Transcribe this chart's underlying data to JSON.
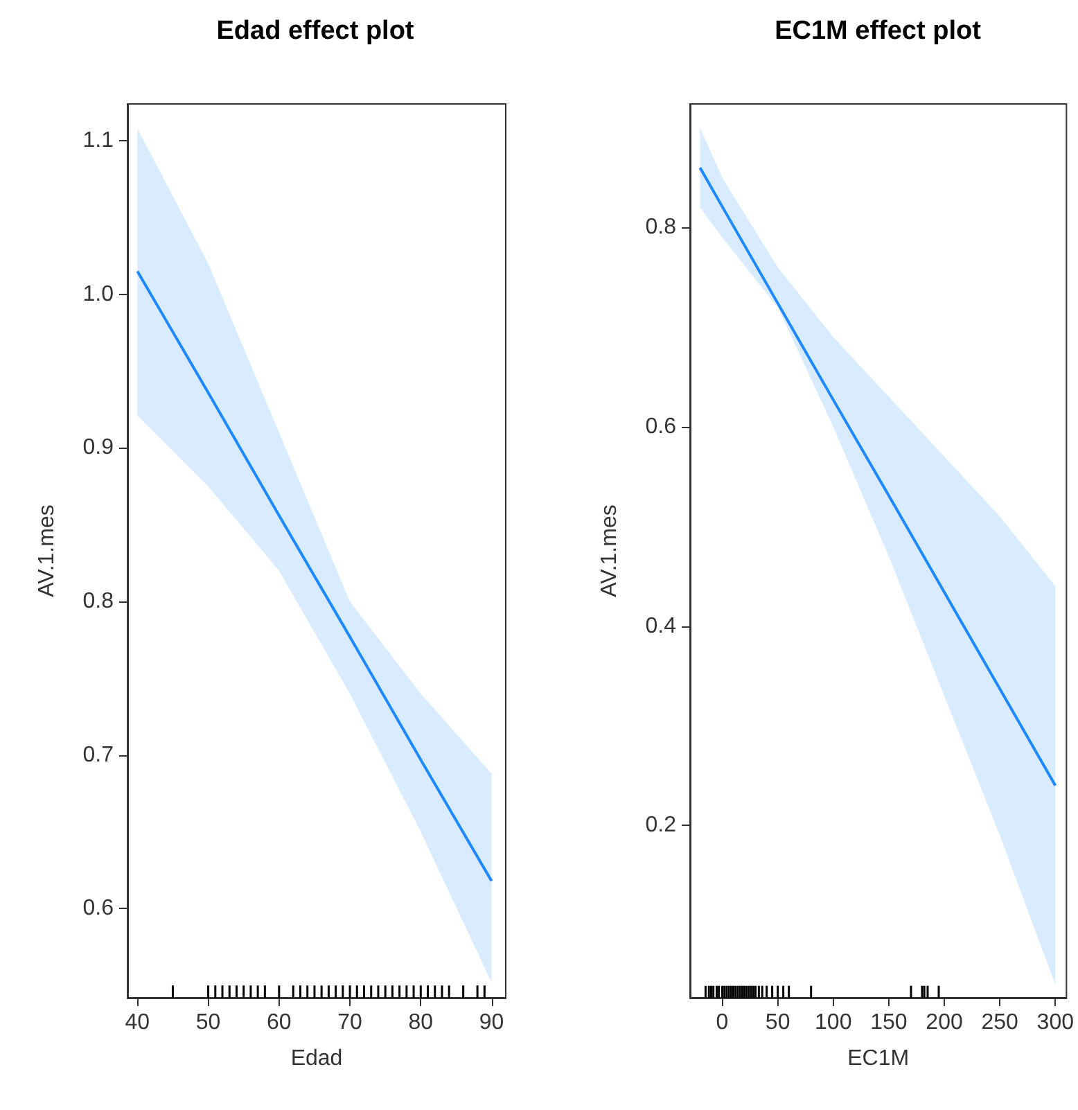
{
  "chart_data": [
    {
      "type": "line",
      "title": "Edad effect plot",
      "xlabel": "Edad",
      "ylabel": "AV.1.mes",
      "xlim": [
        38.6,
        92
      ],
      "xticks": [
        40,
        50,
        60,
        70,
        80,
        90
      ],
      "ylim": [
        0.542,
        1.124
      ],
      "yticks": [
        0.6,
        0.7,
        0.8,
        0.9,
        {
          "value": 1,
          "label": "1.0"
        },
        1.1
      ],
      "grid": false,
      "series": [
        {
          "color": "#1e88ff",
          "marker": "none",
          "x": [
            40,
            50,
            60,
            70,
            80,
            90
          ],
          "values": [
            1.015,
            0.936,
            0.856,
            0.777,
            0.697,
            0.618
          ],
          "lower": [
            0.921,
            0.875,
            0.82,
            0.74,
            0.65,
            0.552
          ],
          "upper": [
            1.108,
            1.02,
            0.91,
            0.8,
            0.74,
            0.688
          ]
        },
        {
          "type": "bar",
          "color": "#000000",
          "x": [
            45,
            50,
            51,
            52,
            53,
            54,
            55,
            56,
            57,
            58,
            60,
            62,
            63,
            64,
            65,
            66,
            67,
            68,
            69,
            70,
            71,
            72,
            73,
            74,
            75,
            76,
            77,
            78,
            79,
            80,
            81,
            82,
            83,
            84,
            86,
            88,
            89
          ],
          "base": [
            0.542,
            0.542,
            0.542,
            0.542,
            0.542,
            0.542,
            0.542,
            0.542,
            0.542,
            0.542,
            0.542,
            0.542,
            0.542,
            0.542,
            0.542,
            0.542,
            0.542,
            0.542,
            0.542,
            0.542,
            0.542,
            0.542,
            0.542,
            0.542,
            0.542,
            0.542,
            0.542,
            0.542,
            0.542,
            0.542,
            0.542,
            0.542,
            0.542,
            0.542,
            0.542,
            0.542,
            0.542
          ],
          "values": [
            0.008,
            0.008,
            0.008,
            0.008,
            0.008,
            0.008,
            0.008,
            0.008,
            0.008,
            0.008,
            0.008,
            0.008,
            0.008,
            0.008,
            0.008,
            0.008,
            0.008,
            0.008,
            0.008,
            0.008,
            0.008,
            0.008,
            0.008,
            0.008,
            0.008,
            0.008,
            0.008,
            0.008,
            0.008,
            0.008,
            0.008,
            0.008,
            0.008,
            0.008,
            0.008,
            0.008,
            0.008
          ]
        }
      ]
    },
    {
      "type": "line",
      "title": "EC1M effect plot",
      "xlabel": "EC1M",
      "ylabel": "AV.1.mes",
      "xlim": [
        -29,
        310
      ],
      "xticks": [
        0,
        50,
        100,
        150,
        200,
        250,
        300
      ],
      "ylim": [
        0.027,
        0.924
      ],
      "yticks": [
        0.2,
        0.4,
        0.6,
        0.8
      ],
      "grid": false,
      "series": [
        {
          "color": "#1e88ff",
          "marker": "none",
          "x": [
            -20,
            0,
            50,
            100,
            150,
            200,
            250,
            300
          ],
          "values": [
            0.86,
            0.821,
            0.724,
            0.627,
            0.531,
            0.434,
            0.337,
            0.24
          ],
          "lower": [
            0.82,
            0.79,
            0.72,
            0.6,
            0.47,
            0.33,
            0.19,
            0.04
          ],
          "upper": [
            0.9,
            0.85,
            0.76,
            0.69,
            0.63,
            0.57,
            0.51,
            0.44
          ]
        },
        {
          "type": "bar",
          "color": "#000000",
          "x": [
            -15,
            -12,
            -10,
            -8,
            -5,
            -3,
            0,
            2,
            4,
            6,
            8,
            10,
            12,
            14,
            16,
            18,
            20,
            22,
            24,
            26,
            28,
            30,
            33,
            36,
            40,
            45,
            50,
            55,
            60,
            80,
            170,
            180,
            182,
            185,
            195
          ],
          "base": [
            0.027,
            0.027,
            0.027,
            0.027,
            0.027,
            0.027,
            0.027,
            0.027,
            0.027,
            0.027,
            0.027,
            0.027,
            0.027,
            0.027,
            0.027,
            0.027,
            0.027,
            0.027,
            0.027,
            0.027,
            0.027,
            0.027,
            0.027,
            0.027,
            0.027,
            0.027,
            0.027,
            0.027,
            0.027,
            0.027,
            0.027,
            0.027,
            0.027,
            0.027,
            0.027
          ],
          "values": [
            0.012,
            0.012,
            0.012,
            0.012,
            0.012,
            0.012,
            0.012,
            0.012,
            0.012,
            0.012,
            0.012,
            0.012,
            0.012,
            0.012,
            0.012,
            0.012,
            0.012,
            0.012,
            0.012,
            0.012,
            0.012,
            0.012,
            0.012,
            0.012,
            0.012,
            0.012,
            0.012,
            0.012,
            0.012,
            0.012,
            0.012,
            0.012,
            0.012,
            0.012,
            0.012
          ]
        }
      ]
    }
  ]
}
